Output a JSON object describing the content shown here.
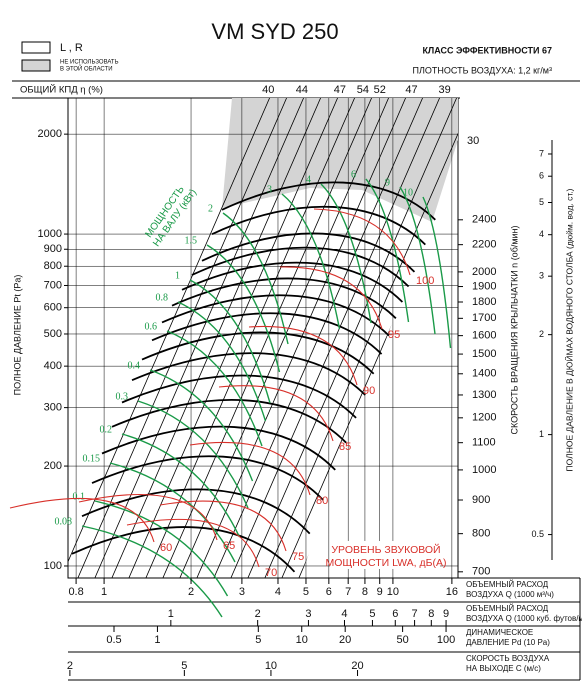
{
  "chart_data": {
    "type": "fan-curve",
    "title": "VM SYD 250",
    "legend": [
      {
        "label": [
          "L , R"
        ],
        "color": "#ffffff"
      },
      {
        "label": [
          "НЕ ИСПОЛЬЗОВАТЬ",
          "В ЭТОЙ ОБЛАСТИ"
        ],
        "color": "#d4d4d4"
      }
    ],
    "efficiency_class": "КЛАСС ЭФФЕКТИВНОСТИ 67",
    "air_density": "ПЛОТНОСТЬ ВОЗДУХА: 1,2 кг/м³",
    "efficiency_axis": {
      "label": "ОБЩИЙ КПД η (%)",
      "marks": [
        {
          "value": 40,
          "q": 3.7
        },
        {
          "value": 44,
          "q": 4.84
        },
        {
          "value": 47,
          "q": 6.55
        },
        {
          "value": 54,
          "q": 7.87
        },
        {
          "value": 52,
          "q": 9.0
        },
        {
          "value": 47,
          "q": 11.6
        },
        {
          "value": 39,
          "q": 15.1
        }
      ]
    },
    "ylabel": "ПОЛНОЕ ДАВЛЕНИЕ Pt (Pa)",
    "ylim": [
      92,
      2570
    ],
    "yticks": [
      100,
      200,
      300,
      400,
      500,
      600,
      700,
      800,
      900,
      1000,
      2000
    ],
    "grid": true,
    "rpm_axis": {
      "label": "СКОРОСТЬ ВРАЩЕНИЯ КРЫЛЬЧАТКИ  n (об/мин)",
      "lim": [
        685,
        3676
      ],
      "ticks": [
        700,
        800,
        900,
        1000,
        1100,
        1200,
        1300,
        1400,
        1500,
        1600,
        1700,
        1800,
        1900,
        2000,
        2200,
        2400
      ]
    },
    "inwg_axis": {
      "label": "ПОЛНОЕ ДАВЛЕНИЕ В ДЮЙМАХ ВОДЯНОГО СТОЛБА (дюйм. вод. ст.)",
      "lim": [
        0.37,
        10.32
      ],
      "ticks": [
        0.5,
        1,
        2,
        3,
        4,
        5,
        6,
        7
      ]
    },
    "x_axes": [
      {
        "label": [
          "ОБЪЕМНЫЙ РАСХОД",
          "ВОЗДУХА Q (1000 м³/ч)"
        ],
        "lim": [
          0.75,
          16.8
        ],
        "ticks": [
          0.8,
          1,
          2,
          3,
          4,
          5,
          6,
          7,
          8,
          9,
          10,
          16
        ]
      },
      {
        "label": [
          "ОБЪЕМНЫЙ РАСХОД",
          "ВОЗДУХА Q (1000 куб. футов/мин)"
        ],
        "lim": [
          0.44,
          9.9
        ],
        "ticks": [
          1,
          2,
          3,
          4,
          5,
          6,
          7,
          8,
          9
        ]
      },
      {
        "label": [
          "ДИНАМИЧЕСКОЕ",
          "ДАВЛЕНИЕ Pd (10 Pa)"
        ],
        "lim": [
          0.24,
          121
        ],
        "ticks": [
          0.5,
          1,
          5,
          10,
          20,
          50,
          100
        ]
      },
      {
        "label": [
          "СКОРОСТЬ ВОЗДУХА",
          "НА ВЫХОДЕ C (м/с)"
        ],
        "lim": [
          1.97,
          44.7
        ],
        "ticks": [
          2,
          5,
          10,
          20
        ]
      }
    ],
    "power": {
      "label": [
        "МОЩНОСТЬ",
        "НА ВАЛУ (кВт)"
      ],
      "color": "#1a9a48",
      "values": [
        0.08,
        0.1,
        0.15,
        0.2,
        0.3,
        0.4,
        0.6,
        0.8,
        1,
        1.5,
        2,
        3,
        4,
        6,
        9,
        10
      ]
    },
    "sound": {
      "label": [
        "УРОВЕНЬ ЗВУКОВОЙ",
        "МОЩНОСТИ LWA, дБ(A)"
      ],
      "color": "#d8302a",
      "values": [
        60,
        65,
        70,
        75,
        80,
        85,
        90,
        95,
        100
      ]
    },
    "annotation": "30"
  }
}
